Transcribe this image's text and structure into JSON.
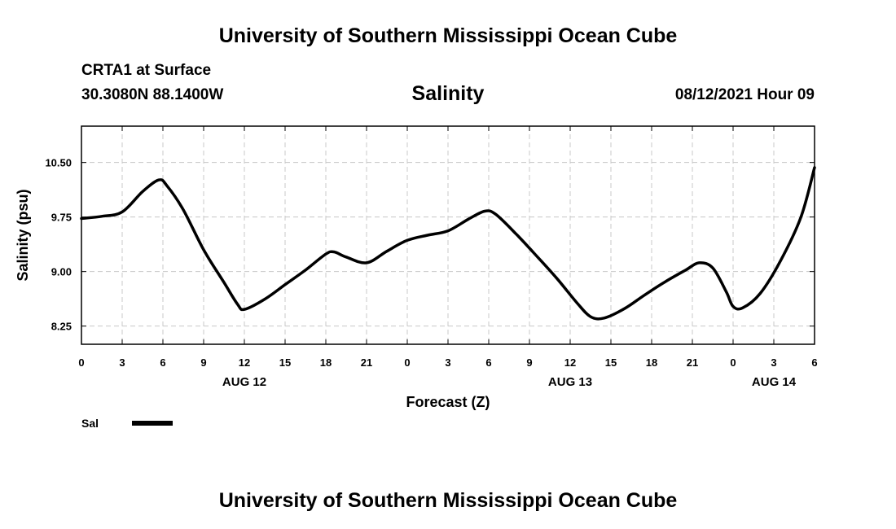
{
  "header": {
    "title": "University of Southern Mississippi Ocean Cube",
    "station": "CRTA1 at Surface",
    "coords": "30.3080N  88.1400W",
    "variable": "Salinity",
    "issued": "08/12/2021 Hour 09"
  },
  "footer": {
    "title": "University of Southern Mississippi Ocean Cube"
  },
  "chart_data": {
    "type": "line",
    "xlabel": "Forecast (Z)",
    "ylabel": "Salinity (psu)",
    "xlim": [
      0,
      54
    ],
    "ylim": [
      8.0,
      11.0
    ],
    "grid": true,
    "x_ticks": [
      0,
      3,
      6,
      9,
      12,
      15,
      18,
      21,
      24,
      27,
      30,
      33,
      36,
      39,
      42,
      45,
      48,
      51,
      54
    ],
    "x_tick_labels": [
      "0",
      "3",
      "6",
      "9",
      "12",
      "15",
      "18",
      "21",
      "0",
      "3",
      "6",
      "9",
      "12",
      "15",
      "18",
      "21",
      "0",
      "3",
      "6"
    ],
    "y_ticks": [
      8.25,
      9.0,
      9.75,
      10.5
    ],
    "y_tick_labels": [
      "8.25",
      "9.00",
      "9.75",
      "10.50"
    ],
    "day_labels": [
      {
        "x": 12,
        "label": "AUG 12"
      },
      {
        "x": 36,
        "label": "AUG 13"
      },
      {
        "x": 51,
        "label": "AUG 14"
      }
    ],
    "legend": {
      "placement": "bottom-left",
      "label": "Sal",
      "color": "#000000"
    },
    "series": [
      {
        "name": "Sal",
        "color": "#000000",
        "x": [
          0,
          1.5,
          3,
          4.5,
          5.7,
          6.3,
          7.5,
          9,
          10.5,
          11.5,
          12,
          13.5,
          15,
          16.5,
          18,
          18.6,
          19.5,
          21,
          22.5,
          24,
          25.5,
          27,
          28.5,
          29.7,
          30.5,
          32,
          33.5,
          35,
          36.5,
          37.5,
          38.5,
          40,
          41.5,
          43,
          44.5,
          45.5,
          46.5,
          47.5,
          48,
          48.7,
          50,
          51.5,
          53,
          54
        ],
        "y": [
          9.73,
          9.76,
          9.82,
          10.1,
          10.26,
          10.18,
          9.85,
          9.3,
          8.85,
          8.55,
          8.48,
          8.62,
          8.82,
          9.02,
          9.24,
          9.27,
          9.2,
          9.12,
          9.28,
          9.43,
          9.5,
          9.56,
          9.72,
          9.83,
          9.79,
          9.52,
          9.22,
          8.91,
          8.57,
          8.38,
          8.36,
          8.49,
          8.68,
          8.86,
          9.02,
          9.12,
          9.05,
          8.72,
          8.52,
          8.5,
          8.7,
          9.15,
          9.75,
          10.43
        ]
      }
    ]
  }
}
